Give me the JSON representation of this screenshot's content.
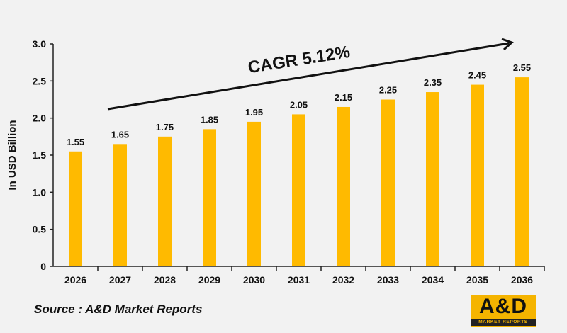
{
  "chart_data": {
    "type": "bar",
    "categories": [
      "2026",
      "2027",
      "2028",
      "2029",
      "2030",
      "2031",
      "2032",
      "2033",
      "2034",
      "2035",
      "2036"
    ],
    "values": [
      1.55,
      1.65,
      1.75,
      1.85,
      1.95,
      2.05,
      2.15,
      2.25,
      2.35,
      2.45,
      2.55
    ],
    "data_labels": [
      "1.55",
      "1.65",
      "1.75",
      "1.85",
      "1.95",
      "2.05",
      "2.15",
      "2.25",
      "2.35",
      "2.45",
      "2.55"
    ],
    "ylabel": "In USD Billion",
    "ylim": [
      0,
      3.0
    ],
    "yticks": [
      0,
      0.5,
      1.0,
      1.5,
      2.0,
      2.5,
      3.0
    ],
    "ytick_labels": [
      "0",
      "0.5",
      "1.0",
      "1.5",
      "2.0",
      "2.5",
      "3.0"
    ],
    "annotation": "CAGR 5.12%",
    "grid": false,
    "bar_color": "#ffba00"
  },
  "source": "Source : A&D Market Reports",
  "logo": {
    "main": "A&D",
    "sub": "MARKET REPORTS",
    "color": "#f5b400"
  }
}
